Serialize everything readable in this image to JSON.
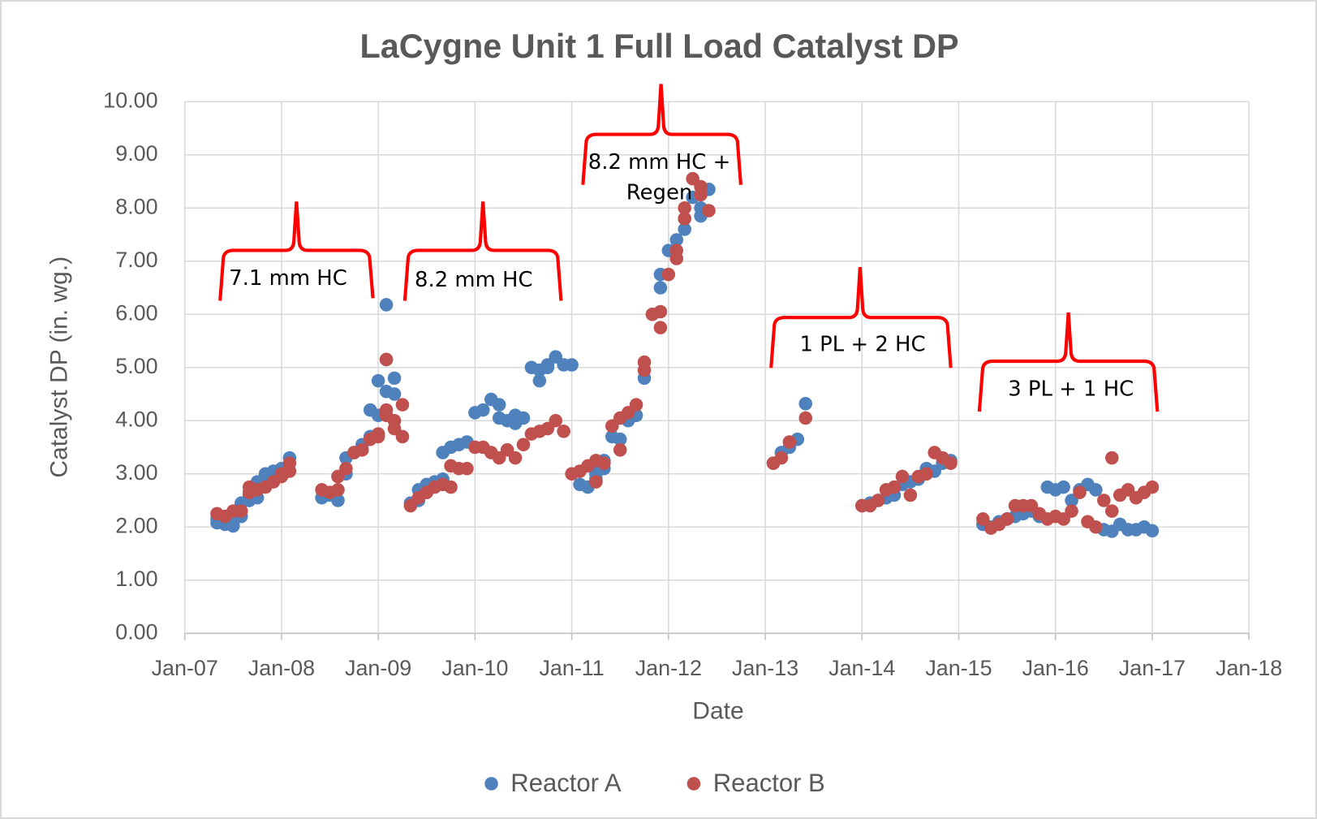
{
  "chart_data": {
    "type": "scatter",
    "title": "LaCygne Unit 1 Full Load Catalyst DP",
    "x_label": "Date",
    "y_label": "Catalyst DP (in. wg.)",
    "xlim": [
      "2007-01",
      "2018-01"
    ],
    "xticks": [
      {
        "value": "2007-01",
        "label": "Jan-07"
      },
      {
        "value": "2008-01",
        "label": "Jan-08"
      },
      {
        "value": "2009-01",
        "label": "Jan-09"
      },
      {
        "value": "2010-01",
        "label": "Jan-10"
      },
      {
        "value": "2011-01",
        "label": "Jan-11"
      },
      {
        "value": "2012-01",
        "label": "Jan-12"
      },
      {
        "value": "2013-01",
        "label": "Jan-13"
      },
      {
        "value": "2014-01",
        "label": "Jan-14"
      },
      {
        "value": "2015-01",
        "label": "Jan-15"
      },
      {
        "value": "2016-01",
        "label": "Jan-16"
      },
      {
        "value": "2017-01",
        "label": "Jan-17"
      },
      {
        "value": "2018-01",
        "label": "Jan-18"
      }
    ],
    "ylim": [
      0,
      10
    ],
    "yticks": [
      {
        "value": 0,
        "label": "0.00"
      },
      {
        "value": 1,
        "label": "1.00"
      },
      {
        "value": 2,
        "label": "2.00"
      },
      {
        "value": 3,
        "label": "3.00"
      },
      {
        "value": 4,
        "label": "4.00"
      },
      {
        "value": 5,
        "label": "5.00"
      },
      {
        "value": 6,
        "label": "6.00"
      },
      {
        "value": 7,
        "label": "7.00"
      },
      {
        "value": 8,
        "label": "8.00"
      },
      {
        "value": 9,
        "label": "9.00"
      },
      {
        "value": 10,
        "label": "10.00"
      }
    ],
    "grid": true,
    "legend": "bottom",
    "annotations": [
      "7.1 mm HC",
      "8.2 mm HC",
      "8.2 mm HC + Regen",
      "1 PL + 2 HC",
      "3 PL + 1 HC"
    ],
    "series": [
      {
        "name": "Reactor A",
        "color": "#4f81bd",
        "x": [
          "2007-05",
          "2007-05",
          "2007-06",
          "2007-07",
          "2007-07",
          "2007-08",
          "2007-08",
          "2007-09",
          "2007-09",
          "2007-10",
          "2007-10",
          "2007-11",
          "2007-11",
          "2007-12",
          "2008-01",
          "2008-02",
          "2008-06",
          "2008-07",
          "2008-08",
          "2008-08",
          "2008-09",
          "2008-09",
          "2008-10",
          "2008-11",
          "2008-12",
          "2008-12",
          "2009-01",
          "2009-01",
          "2009-02",
          "2009-02",
          "2009-02",
          "2009-03",
          "2009-03",
          "2009-05",
          "2009-06",
          "2009-06",
          "2009-07",
          "2009-08",
          "2009-09",
          "2009-09",
          "2009-10",
          "2009-11",
          "2009-12",
          "2010-01",
          "2010-02",
          "2010-03",
          "2010-04",
          "2010-04",
          "2010-05",
          "2010-06",
          "2010-06",
          "2010-07",
          "2010-08",
          "2010-09",
          "2010-09",
          "2010-10",
          "2010-10",
          "2010-11",
          "2010-12",
          "2011-01",
          "2011-02",
          "2011-03",
          "2011-04",
          "2011-04",
          "2011-05",
          "2011-05",
          "2011-06",
          "2011-07",
          "2011-08",
          "2011-09",
          "2011-10",
          "2011-11",
          "2011-12",
          "2011-12",
          "2012-01",
          "2012-02",
          "2012-03",
          "2012-03",
          "2012-04",
          "2012-05",
          "2012-05",
          "2012-06",
          "2013-02",
          "2013-03",
          "2013-04",
          "2013-05",
          "2013-06",
          "2014-01",
          "2014-02",
          "2014-03",
          "2014-04",
          "2014-05",
          "2014-06",
          "2014-07",
          "2014-08",
          "2014-09",
          "2014-10",
          "2014-11",
          "2014-12",
          "2015-04",
          "2015-05",
          "2015-06",
          "2015-07",
          "2015-08",
          "2015-09",
          "2015-10",
          "2015-11",
          "2015-12",
          "2016-01",
          "2016-02",
          "2016-03",
          "2016-04",
          "2016-05",
          "2016-06",
          "2016-07",
          "2016-08",
          "2016-09",
          "2016-10",
          "2016-11",
          "2016-12",
          "2017-01"
        ],
        "values": [
          2.08,
          2.15,
          2.05,
          2.02,
          2.1,
          2.2,
          2.45,
          2.5,
          2.6,
          2.55,
          2.85,
          2.95,
          3.0,
          3.05,
          3.1,
          3.3,
          2.55,
          2.6,
          2.5,
          2.95,
          3.0,
          3.3,
          3.4,
          3.55,
          3.7,
          4.2,
          4.1,
          4.75,
          5.15,
          6.18,
          4.55,
          4.5,
          4.8,
          2.45,
          2.5,
          2.7,
          2.8,
          2.85,
          2.9,
          3.4,
          3.5,
          3.55,
          3.6,
          4.15,
          4.2,
          4.4,
          4.3,
          4.05,
          4.0,
          4.1,
          3.95,
          4.05,
          5.0,
          4.95,
          4.75,
          5.0,
          5.05,
          5.2,
          5.05,
          5.05,
          2.8,
          2.75,
          2.9,
          3.0,
          3.1,
          3.25,
          3.7,
          3.65,
          4.0,
          4.1,
          4.8,
          6.0,
          6.5,
          6.75,
          7.2,
          7.4,
          7.6,
          7.8,
          8.2,
          7.85,
          8.0,
          8.35,
          3.2,
          3.4,
          3.5,
          3.65,
          4.32,
          2.4,
          2.45,
          2.5,
          2.55,
          2.6,
          2.8,
          2.85,
          2.9,
          3.1,
          3.05,
          3.2,
          3.25,
          2.05,
          2.0,
          2.1,
          2.15,
          2.2,
          2.25,
          2.3,
          2.2,
          2.75,
          2.7,
          2.75,
          2.5,
          2.7,
          2.8,
          2.7,
          1.95,
          1.92,
          2.05,
          1.95,
          1.95,
          2.0,
          1.93
        ]
      },
      {
        "name": "Reactor B",
        "color": "#c0504d",
        "x": [
          "2007-05",
          "2007-06",
          "2007-07",
          "2007-08",
          "2007-09",
          "2007-09",
          "2007-10",
          "2007-11",
          "2007-12",
          "2008-01",
          "2008-01",
          "2008-02",
          "2008-02",
          "2008-06",
          "2008-07",
          "2008-08",
          "2008-08",
          "2008-09",
          "2008-10",
          "2008-11",
          "2008-12",
          "2009-01",
          "2009-01",
          "2009-02",
          "2009-02",
          "2009-02",
          "2009-03",
          "2009-03",
          "2009-04",
          "2009-04",
          "2009-05",
          "2009-06",
          "2009-07",
          "2009-08",
          "2009-09",
          "2009-10",
          "2009-10",
          "2009-11",
          "2009-12",
          "2010-01",
          "2010-02",
          "2010-03",
          "2010-04",
          "2010-05",
          "2010-06",
          "2010-07",
          "2010-08",
          "2010-09",
          "2010-10",
          "2010-11",
          "2010-12",
          "2011-01",
          "2011-02",
          "2011-03",
          "2011-04",
          "2011-04",
          "2011-05",
          "2011-06",
          "2011-07",
          "2011-07",
          "2011-08",
          "2011-09",
          "2011-10",
          "2011-10",
          "2011-11",
          "2011-12",
          "2011-12",
          "2012-01",
          "2012-02",
          "2012-02",
          "2012-03",
          "2012-03",
          "2012-04",
          "2012-05",
          "2012-05",
          "2012-06",
          "2013-02",
          "2013-03",
          "2013-04",
          "2013-06",
          "2014-01",
          "2014-02",
          "2014-03",
          "2014-04",
          "2014-05",
          "2014-06",
          "2014-07",
          "2014-08",
          "2014-09",
          "2014-10",
          "2014-11",
          "2014-12",
          "2015-04",
          "2015-05",
          "2015-06",
          "2015-07",
          "2015-08",
          "2015-09",
          "2015-10",
          "2015-11",
          "2015-12",
          "2016-01",
          "2016-02",
          "2016-03",
          "2016-04",
          "2016-05",
          "2016-06",
          "2016-07",
          "2016-08",
          "2016-08",
          "2016-09",
          "2016-10",
          "2016-11",
          "2016-12",
          "2017-01"
        ],
        "values": [
          2.25,
          2.2,
          2.3,
          2.3,
          2.75,
          2.65,
          2.7,
          2.75,
          2.85,
          3.0,
          2.95,
          3.05,
          3.2,
          2.7,
          2.65,
          2.7,
          2.95,
          3.1,
          3.4,
          3.45,
          3.65,
          3.75,
          3.7,
          5.15,
          4.2,
          4.1,
          3.85,
          4.0,
          3.7,
          4.3,
          2.4,
          2.55,
          2.65,
          2.75,
          2.8,
          2.75,
          3.15,
          3.1,
          3.1,
          3.5,
          3.5,
          3.4,
          3.3,
          3.45,
          3.3,
          3.55,
          3.75,
          3.8,
          3.85,
          4.0,
          3.8,
          3.0,
          3.05,
          3.15,
          2.85,
          3.25,
          3.2,
          3.9,
          4.05,
          3.45,
          4.15,
          4.3,
          5.1,
          4.95,
          6.0,
          5.75,
          6.05,
          6.75,
          7.05,
          7.2,
          7.8,
          8.0,
          8.55,
          8.25,
          8.4,
          7.95,
          3.2,
          3.3,
          3.6,
          4.05,
          2.4,
          2.4,
          2.5,
          2.7,
          2.75,
          2.95,
          2.6,
          2.95,
          3.0,
          3.4,
          3.3,
          3.2,
          2.15,
          1.98,
          2.05,
          2.15,
          2.4,
          2.4,
          2.4,
          2.25,
          2.15,
          2.2,
          2.15,
          2.3,
          2.65,
          2.1,
          2.0,
          2.5,
          3.3,
          2.3,
          2.6,
          2.7,
          2.55,
          2.65,
          2.75
        ]
      }
    ]
  }
}
